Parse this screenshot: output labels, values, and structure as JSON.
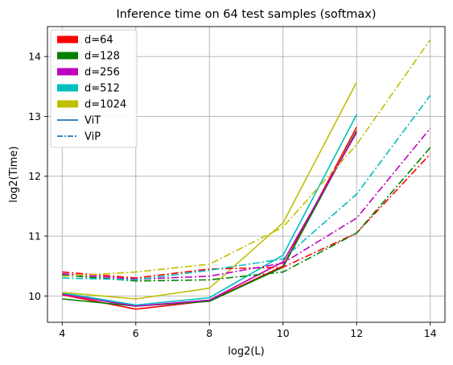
{
  "chart_data": {
    "type": "line",
    "title": "Inference time on 64 test samples (softmax)",
    "xlabel": "log2(L)",
    "ylabel": "log2(Time)",
    "x": [
      4,
      6,
      8,
      10,
      12,
      14
    ],
    "xticks": [
      "4",
      "6",
      "8",
      "10",
      "12",
      "14"
    ],
    "yticks": [
      "10",
      "11",
      "12",
      "13",
      "14"
    ],
    "xlim": [
      3.6,
      14.4
    ],
    "ylim": [
      9.56,
      14.5
    ],
    "grid": true,
    "legend_position": "top-left",
    "legend": [
      {
        "label": "d=64",
        "kind": "patch",
        "color": "#ff0000"
      },
      {
        "label": "d=128",
        "kind": "patch",
        "color": "#008000"
      },
      {
        "label": "d=256",
        "kind": "patch",
        "color": "#bf00bf"
      },
      {
        "label": "d=512",
        "kind": "patch",
        "color": "#00bfbf"
      },
      {
        "label": "d=1024",
        "kind": "patch",
        "color": "#bfbf00"
      },
      {
        "label": "ViT",
        "kind": "line",
        "style": "solid",
        "color": "#1f77b4"
      },
      {
        "label": "ViP",
        "kind": "line",
        "style": "dashdot",
        "color": "#1f77b4"
      }
    ],
    "series": [
      {
        "model": "ViT",
        "d": "64",
        "color": "#ff0000",
        "style": "solid",
        "values": [
          10.02,
          9.78,
          9.92,
          10.5,
          12.82,
          null
        ]
      },
      {
        "model": "ViT",
        "d": "128",
        "color": "#008000",
        "style": "solid",
        "values": [
          9.95,
          9.83,
          9.91,
          10.48,
          12.76,
          null
        ]
      },
      {
        "model": "ViT",
        "d": "256",
        "color": "#bf00bf",
        "style": "solid",
        "values": [
          10.03,
          9.83,
          9.93,
          10.57,
          12.73,
          null
        ]
      },
      {
        "model": "ViT",
        "d": "512",
        "color": "#00bfbf",
        "style": "solid",
        "values": [
          10.05,
          9.85,
          9.97,
          10.68,
          13.03,
          null
        ]
      },
      {
        "model": "ViT",
        "d": "1024",
        "color": "#bfbf00",
        "style": "solid",
        "values": [
          10.06,
          9.95,
          10.13,
          11.22,
          13.57,
          null
        ]
      },
      {
        "model": "ViP",
        "d": "64",
        "color": "#ff0000",
        "style": "dashdot",
        "values": [
          10.4,
          10.3,
          10.45,
          10.48,
          11.05,
          12.37
        ]
      },
      {
        "model": "ViP",
        "d": "128",
        "color": "#008000",
        "style": "dashdot",
        "values": [
          10.35,
          10.25,
          10.27,
          10.4,
          11.05,
          12.48
        ]
      },
      {
        "model": "ViP",
        "d": "256",
        "color": "#bf00bf",
        "style": "dashdot",
        "values": [
          10.37,
          10.28,
          10.33,
          10.55,
          11.3,
          12.8
        ]
      },
      {
        "model": "ViP",
        "d": "512",
        "color": "#00bfbf",
        "style": "dashdot",
        "values": [
          10.3,
          10.27,
          10.43,
          10.62,
          11.7,
          13.35
        ]
      },
      {
        "model": "ViP",
        "d": "1024",
        "color": "#bfbf00",
        "style": "dashdot",
        "values": [
          10.33,
          10.4,
          10.53,
          11.15,
          12.53,
          14.28
        ]
      }
    ]
  }
}
